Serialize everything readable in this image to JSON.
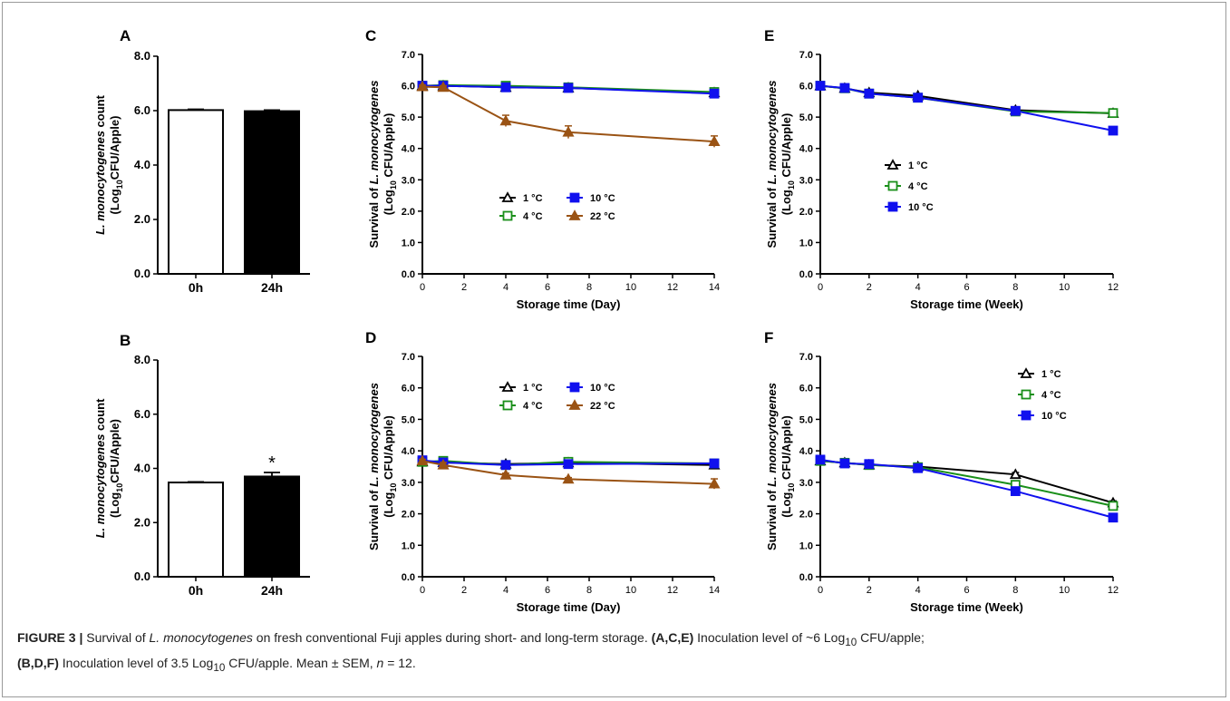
{
  "panels": [
    {
      "id": "A",
      "label": "A",
      "type": "bar",
      "ylabel_lines": [
        [
          "L. monocytogenes",
          " count"
        ],
        [
          "(Log",
          "10",
          "CFU/Apple)"
        ]
      ],
      "xlabel": "",
      "yticks": [
        "0.0",
        "2.0",
        "4.0",
        "6.0",
        "8.0"
      ],
      "ylim": [
        0,
        8
      ],
      "categories": [
        "0h",
        "24h"
      ],
      "values": [
        6.02,
        5.98
      ],
      "errors": [
        0.03,
        0.04
      ],
      "fills": [
        "#ffffff",
        "#000000"
      ],
      "annotation": ""
    },
    {
      "id": "B",
      "label": "B",
      "type": "bar",
      "ylabel_lines": [
        [
          "L. monocytogenes",
          " count"
        ],
        [
          "(Log",
          "10",
          "CFU/Apple)"
        ]
      ],
      "xlabel": "",
      "yticks": [
        "0.0",
        "2.0",
        "4.0",
        "6.0",
        "8.0"
      ],
      "ylim": [
        0,
        8
      ],
      "categories": [
        "0h",
        "24h"
      ],
      "values": [
        3.48,
        3.7
      ],
      "errors": [
        0.02,
        0.15
      ],
      "fills": [
        "#ffffff",
        "#000000"
      ],
      "annotation": "*"
    },
    {
      "id": "C",
      "label": "C",
      "type": "line",
      "ylabel_lines": [
        [
          "Survival of ",
          "L. monocytogenes"
        ],
        [
          "(Log",
          "10",
          " CFU/Apple)"
        ]
      ],
      "xlabel": "Storage time (Day)",
      "xticks": [
        "0",
        "2",
        "4",
        "6",
        "8",
        "10",
        "12",
        "14"
      ],
      "yticks": [
        "0.0",
        "1.0",
        "2.0",
        "3.0",
        "4.0",
        "5.0",
        "6.0",
        "7.0"
      ],
      "xlim": [
        0,
        14
      ],
      "ylim": [
        0,
        7
      ],
      "x": [
        0,
        1,
        4,
        7,
        14
      ],
      "legend_layout": "grid",
      "series": [
        {
          "name": "1 °C",
          "color": "#000000",
          "marker": "triangle-open",
          "values": [
            6.0,
            6.0,
            5.95,
            5.93,
            5.78
          ],
          "errors": [
            0.04,
            0.05,
            0.05,
            0.05,
            0.05
          ]
        },
        {
          "name": "4 °C",
          "color": "#1a8f1a",
          "marker": "square-open",
          "values": [
            6.0,
            6.02,
            6.0,
            5.95,
            5.8
          ],
          "errors": [
            0.04,
            0.05,
            0.05,
            0.05,
            0.05
          ]
        },
        {
          "name": "10 °C",
          "color": "#1010ee",
          "marker": "square",
          "values": [
            6.0,
            6.0,
            5.95,
            5.93,
            5.75
          ],
          "errors": [
            0.04,
            0.05,
            0.05,
            0.05,
            0.05
          ]
        },
        {
          "name": "22 °C",
          "color": "#9a5314",
          "marker": "triangle",
          "values": [
            5.97,
            5.95,
            4.88,
            4.52,
            4.22
          ],
          "errors": [
            0.05,
            0.05,
            0.18,
            0.2,
            0.18
          ]
        }
      ]
    },
    {
      "id": "D",
      "label": "D",
      "type": "line",
      "ylabel_lines": [
        [
          "Survival of ",
          "L. monocytogenes"
        ],
        [
          "(Log",
          "10",
          " CFU/Apple)"
        ]
      ],
      "xlabel": "Storage time (Day)",
      "xticks": [
        "0",
        "2",
        "4",
        "6",
        "8",
        "10",
        "12",
        "14"
      ],
      "yticks": [
        "0.0",
        "1.0",
        "2.0",
        "3.0",
        "4.0",
        "5.0",
        "6.0",
        "7.0"
      ],
      "xlim": [
        0,
        14
      ],
      "ylim": [
        0,
        7
      ],
      "x": [
        0,
        1,
        4,
        7,
        14
      ],
      "legend_layout": "grid",
      "series": [
        {
          "name": "1 °C",
          "color": "#000000",
          "marker": "triangle-open",
          "values": [
            3.65,
            3.63,
            3.58,
            3.62,
            3.55
          ],
          "errors": [
            0.04,
            0.05,
            0.05,
            0.05,
            0.05
          ]
        },
        {
          "name": "4 °C",
          "color": "#1a8f1a",
          "marker": "square-open",
          "values": [
            3.65,
            3.68,
            3.55,
            3.65,
            3.6
          ],
          "errors": [
            0.04,
            0.05,
            0.05,
            0.05,
            0.05
          ]
        },
        {
          "name": "10 °C",
          "color": "#1010ee",
          "marker": "square",
          "values": [
            3.7,
            3.63,
            3.55,
            3.58,
            3.6
          ],
          "errors": [
            0.04,
            0.05,
            0.05,
            0.05,
            0.05
          ]
        },
        {
          "name": "22 °C",
          "color": "#9a5314",
          "marker": "triangle",
          "values": [
            3.68,
            3.55,
            3.23,
            3.1,
            2.95
          ],
          "errors": [
            0.05,
            0.08,
            0.06,
            0.05,
            0.16
          ]
        }
      ]
    },
    {
      "id": "E",
      "label": "E",
      "type": "line",
      "ylabel_lines": [
        [
          "Survival of ",
          "L. monocytogenes"
        ],
        [
          "(Log",
          "10",
          " CFU/Apple)"
        ]
      ],
      "xlabel": "Storage time (Week)",
      "xticks": [
        "0",
        "2",
        "4",
        "6",
        "8",
        "10",
        "12"
      ],
      "yticks": [
        "0.0",
        "1.0",
        "2.0",
        "3.0",
        "4.0",
        "5.0",
        "6.0",
        "7.0"
      ],
      "xlim": [
        0,
        12
      ],
      "ylim": [
        0,
        7
      ],
      "x": [
        0,
        1,
        2,
        4,
        8,
        12
      ],
      "legend_layout": "column",
      "series": [
        {
          "name": "1 °C",
          "color": "#000000",
          "marker": "triangle-open",
          "values": [
            6.0,
            5.92,
            5.78,
            5.68,
            5.22,
            5.12
          ],
          "errors": [
            0.04,
            0.05,
            0.05,
            0.05,
            0.07,
            0.08
          ]
        },
        {
          "name": "4 °C",
          "color": "#1a8f1a",
          "marker": "square-open",
          "values": [
            6.0,
            5.92,
            5.75,
            5.62,
            5.18,
            5.13
          ],
          "errors": [
            0.04,
            0.05,
            0.05,
            0.05,
            0.07,
            0.08
          ]
        },
        {
          "name": "10 °C",
          "color": "#1010ee",
          "marker": "square",
          "values": [
            6.0,
            5.93,
            5.75,
            5.62,
            5.2,
            4.57
          ],
          "errors": [
            0.04,
            0.05,
            0.05,
            0.05,
            0.1,
            0.05
          ]
        }
      ]
    },
    {
      "id": "F",
      "label": "F",
      "type": "line",
      "ylabel_lines": [
        [
          "Survival of ",
          "L. monocytogenes"
        ],
        [
          "(Log",
          "10",
          " CFU/Apple)"
        ]
      ],
      "xlabel": "Storage time (Week)",
      "xticks": [
        "0",
        "2",
        "4",
        "6",
        "8",
        "10",
        "12"
      ],
      "yticks": [
        "0.0",
        "1.0",
        "2.0",
        "3.0",
        "4.0",
        "5.0",
        "6.0",
        "7.0"
      ],
      "xlim": [
        0,
        12
      ],
      "ylim": [
        0,
        7
      ],
      "x": [
        0,
        1,
        2,
        4,
        8,
        12
      ],
      "legend_layout": "column",
      "series": [
        {
          "name": "1 °C",
          "color": "#000000",
          "marker": "triangle-open",
          "values": [
            3.68,
            3.62,
            3.55,
            3.5,
            3.25,
            2.35
          ],
          "errors": [
            0.04,
            0.05,
            0.05,
            0.05,
            0.06,
            0.06
          ]
        },
        {
          "name": "4 °C",
          "color": "#1a8f1a",
          "marker": "square-open",
          "values": [
            3.68,
            3.62,
            3.55,
            3.48,
            2.92,
            2.25
          ],
          "errors": [
            0.04,
            0.05,
            0.05,
            0.05,
            0.06,
            0.06
          ]
        },
        {
          "name": "10 °C",
          "color": "#1010ee",
          "marker": "square",
          "values": [
            3.72,
            3.6,
            3.58,
            3.45,
            2.72,
            1.88
          ],
          "errors": [
            0.04,
            0.05,
            0.05,
            0.05,
            0.06,
            0.05
          ]
        }
      ]
    }
  ],
  "caption": {
    "figure_label": "FIGURE 3 |",
    "text_1": " Survival of ",
    "organism": "L. monocytogenes",
    "text_2": " on fresh conventional Fuji apples during short- and long-term storage. ",
    "group_1": "(A,C,E)",
    "text_3": " Inoculation level of ~6 Log",
    "sub_1": "10",
    "text_4": " CFU/apple;",
    "group_2": "(B,D,F)",
    "text_5": " Inoculation level of 3.5 Log",
    "sub_2": "10",
    "text_6": " CFU/apple. Mean ± SEM, ",
    "n_symbol": "n",
    "text_7": " = 12."
  }
}
